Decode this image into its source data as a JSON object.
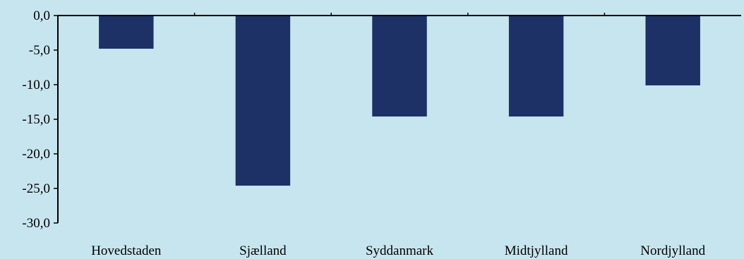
{
  "chart_data": {
    "type": "bar",
    "categories": [
      "Hovedstaden",
      "Sjælland",
      "Syddanmark",
      "Midtjylland",
      "Nordjylland"
    ],
    "values": [
      -4.8,
      -24.6,
      -14.6,
      -14.6,
      -10.1
    ],
    "ylim": [
      -30,
      0
    ],
    "yticks": [
      0,
      -5,
      -10,
      -15,
      -20,
      -25,
      -30
    ],
    "ytick_labels": [
      "0,0",
      "-5,0",
      "-10,0",
      "-15,0",
      "-20,0",
      "-25,0",
      "-30,0"
    ],
    "grid": false,
    "legend": "none",
    "bar_color": "#1d3166",
    "background_color": "#c7e5ee",
    "axis_color": "#000000"
  }
}
